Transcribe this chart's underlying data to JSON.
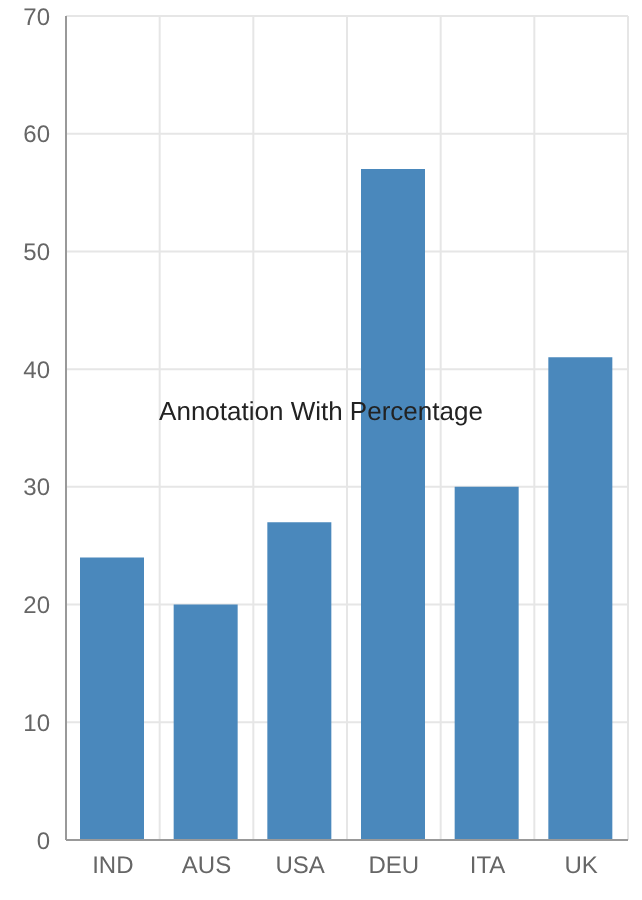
{
  "chart_data": {
    "type": "bar",
    "categories": [
      "IND",
      "AUS",
      "USA",
      "DEU",
      "ITA",
      "UK"
    ],
    "values": [
      24,
      20,
      27,
      57,
      30,
      41
    ],
    "color": "#4a88bc",
    "ylim": [
      0,
      70
    ],
    "yticks": [
      0,
      10,
      20,
      30,
      40,
      50,
      60,
      70
    ],
    "grid": true,
    "annotations": [
      "Annotation With Percentage"
    ]
  }
}
